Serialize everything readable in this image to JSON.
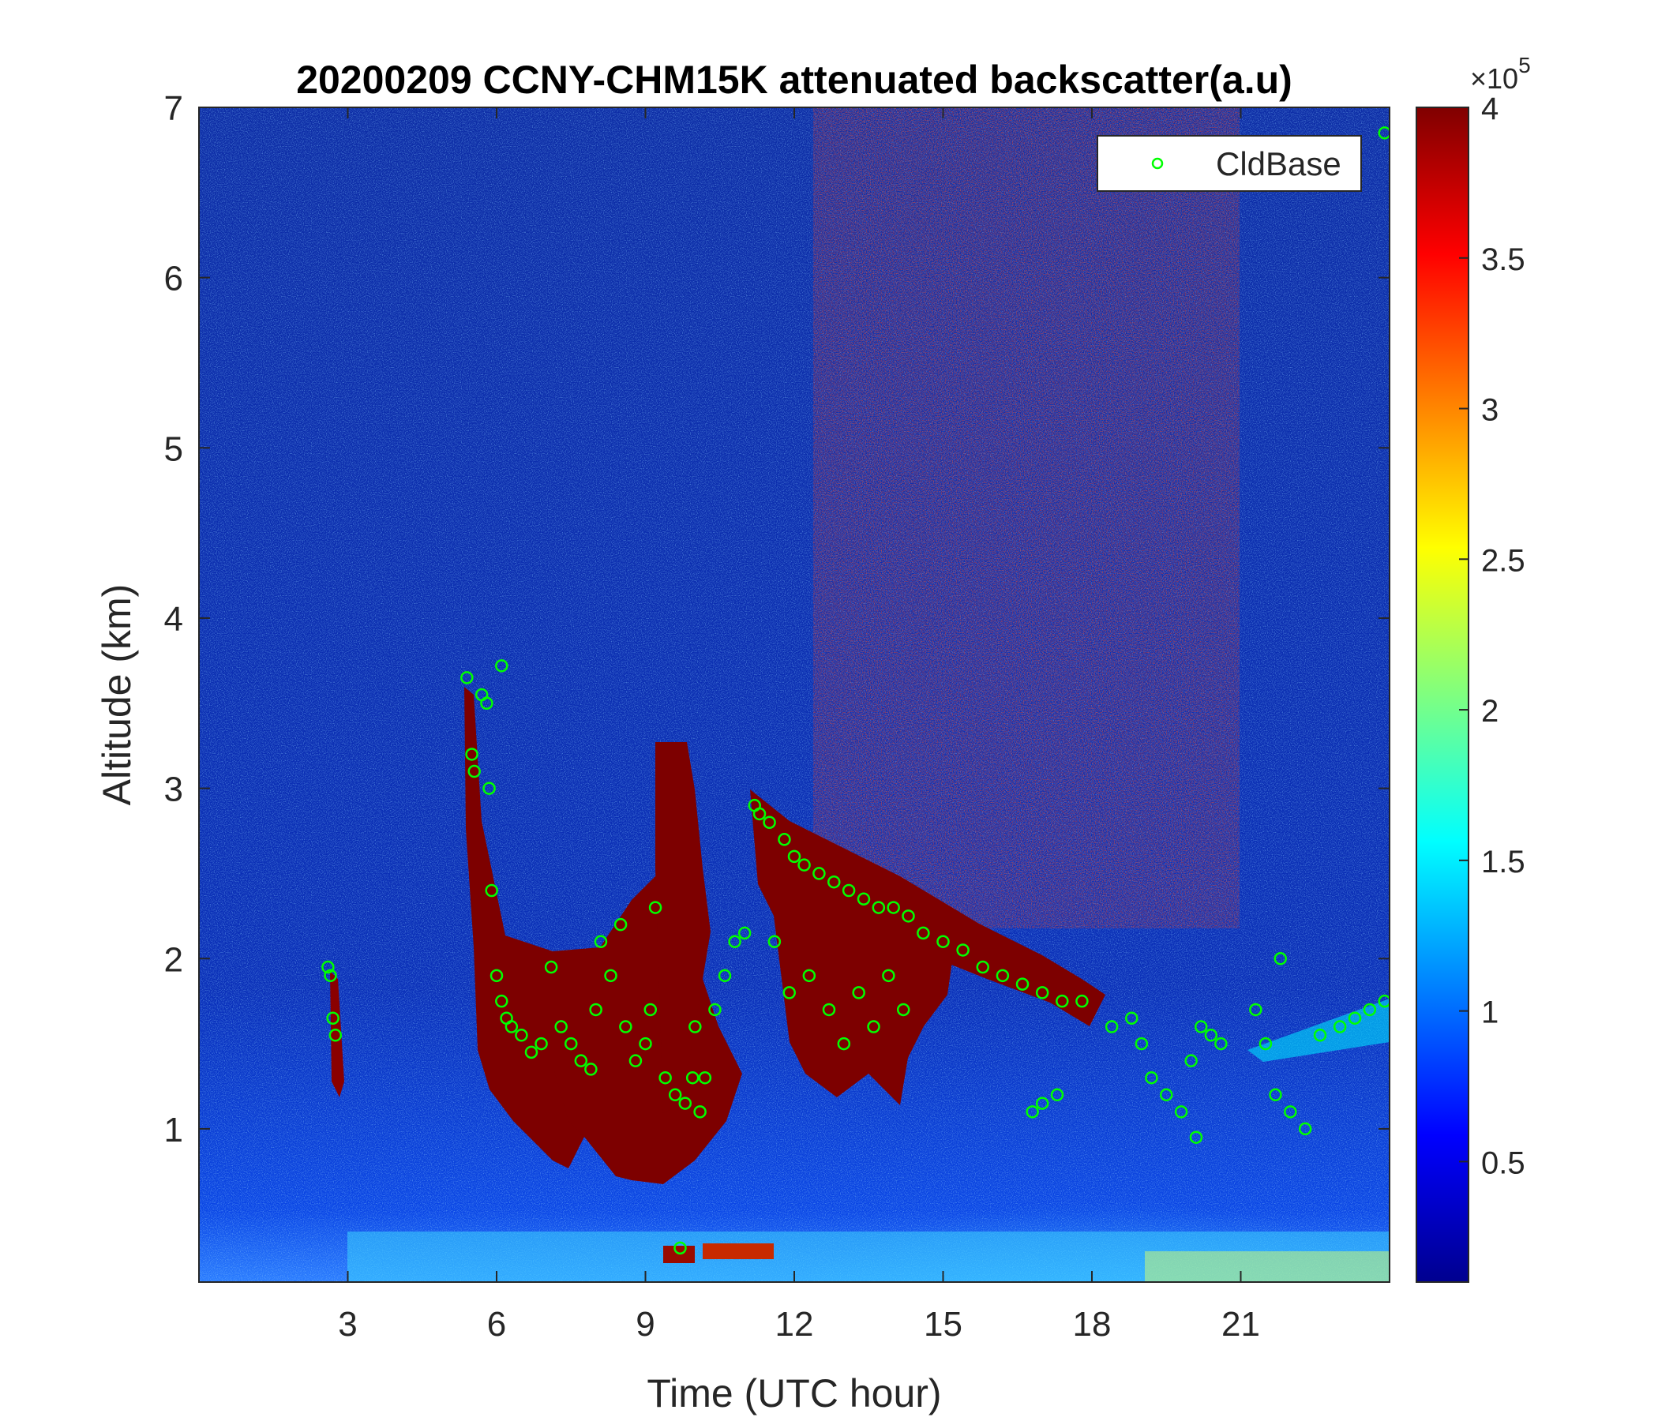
{
  "chart_data": {
    "type": "heatmap",
    "title": "20200209 CCNY-CHM15K attenuated backscatter(a.u)",
    "xlabel": "Time (UTC hour)",
    "ylabel": "Altitude (km)",
    "xlim": [
      0,
      24
    ],
    "ylim": [
      0.1,
      7
    ],
    "xticks": [
      3,
      6,
      9,
      12,
      15,
      18,
      21
    ],
    "yticks": [
      1,
      2,
      3,
      4,
      5,
      6,
      7
    ],
    "colorbar": {
      "colormap": "jet",
      "range": [
        0.1,
        4
      ],
      "ticks": [
        0.5,
        1,
        1.5,
        2,
        2.5,
        3,
        3.5,
        4
      ],
      "tick_labels": [
        "0.5",
        "1",
        "1.5",
        "2",
        "2.5",
        "3",
        "3.5",
        "4"
      ],
      "multiplier_prefix": "×10",
      "multiplier_exponent": "5"
    },
    "legend": {
      "position": "top-right",
      "entries": [
        "CldBase"
      ]
    },
    "series": [
      {
        "name": "CldBase",
        "marker": "circle-open",
        "color": "#00ff00",
        "points": [
          [
            2.6,
            1.95
          ],
          [
            2.65,
            1.9
          ],
          [
            2.7,
            1.65
          ],
          [
            2.75,
            1.55
          ],
          [
            5.4,
            3.65
          ],
          [
            5.5,
            3.2
          ],
          [
            5.55,
            3.1
          ],
          [
            5.7,
            3.55
          ],
          [
            5.8,
            3.5
          ],
          [
            5.85,
            3.0
          ],
          [
            5.9,
            2.4
          ],
          [
            6.0,
            1.9
          ],
          [
            6.1,
            1.75
          ],
          [
            6.2,
            1.65
          ],
          [
            6.3,
            1.6
          ],
          [
            6.5,
            1.55
          ],
          [
            6.7,
            1.45
          ],
          [
            6.9,
            1.5
          ],
          [
            6.1,
            3.72
          ],
          [
            7.1,
            1.95
          ],
          [
            7.3,
            1.6
          ],
          [
            7.5,
            1.5
          ],
          [
            7.7,
            1.4
          ],
          [
            7.9,
            1.35
          ],
          [
            8.0,
            1.7
          ],
          [
            8.1,
            2.1
          ],
          [
            8.3,
            1.9
          ],
          [
            8.5,
            2.2
          ],
          [
            8.6,
            1.6
          ],
          [
            8.8,
            1.4
          ],
          [
            9.0,
            1.5
          ],
          [
            9.1,
            1.7
          ],
          [
            9.2,
            2.3
          ],
          [
            9.4,
            1.3
          ],
          [
            9.6,
            1.2
          ],
          [
            9.8,
            1.15
          ],
          [
            9.95,
            1.3
          ],
          [
            10.0,
            1.6
          ],
          [
            10.1,
            1.1
          ],
          [
            10.2,
            1.3
          ],
          [
            10.4,
            1.7
          ],
          [
            10.6,
            1.9
          ],
          [
            10.8,
            2.1
          ],
          [
            11.0,
            2.15
          ],
          [
            11.2,
            2.9
          ],
          [
            11.3,
            2.85
          ],
          [
            11.5,
            2.8
          ],
          [
            11.8,
            2.7
          ],
          [
            12.0,
            2.6
          ],
          [
            12.2,
            2.55
          ],
          [
            12.5,
            2.5
          ],
          [
            12.8,
            2.45
          ],
          [
            13.1,
            2.4
          ],
          [
            13.4,
            2.35
          ],
          [
            13.7,
            2.3
          ],
          [
            14.0,
            2.3
          ],
          [
            14.3,
            2.25
          ],
          [
            14.6,
            2.15
          ],
          [
            15.0,
            2.1
          ],
          [
            15.4,
            2.05
          ],
          [
            11.6,
            2.1
          ],
          [
            11.9,
            1.8
          ],
          [
            12.3,
            1.9
          ],
          [
            12.7,
            1.7
          ],
          [
            13.0,
            1.5
          ],
          [
            13.3,
            1.8
          ],
          [
            13.6,
            1.6
          ],
          [
            13.9,
            1.9
          ],
          [
            14.2,
            1.7
          ],
          [
            9.7,
            0.3
          ],
          [
            15.8,
            1.95
          ],
          [
            16.2,
            1.9
          ],
          [
            16.6,
            1.85
          ],
          [
            17.0,
            1.8
          ],
          [
            17.4,
            1.75
          ],
          [
            17.8,
            1.75
          ],
          [
            16.8,
            1.1
          ],
          [
            17.0,
            1.15
          ],
          [
            17.3,
            1.2
          ],
          [
            18.4,
            1.6
          ],
          [
            18.8,
            1.65
          ],
          [
            19.0,
            1.5
          ],
          [
            19.2,
            1.3
          ],
          [
            19.5,
            1.2
          ],
          [
            19.8,
            1.1
          ],
          [
            20.0,
            1.4
          ],
          [
            20.2,
            1.6
          ],
          [
            20.4,
            1.55
          ],
          [
            20.6,
            1.5
          ],
          [
            20.1,
            0.95
          ],
          [
            21.3,
            1.7
          ],
          [
            21.5,
            1.5
          ],
          [
            21.8,
            2.0
          ],
          [
            21.7,
            1.2
          ],
          [
            22.0,
            1.1
          ],
          [
            22.3,
            1.0
          ],
          [
            22.6,
            1.55
          ],
          [
            23.0,
            1.6
          ],
          [
            23.3,
            1.65
          ],
          [
            23.6,
            1.7
          ],
          [
            23.9,
            1.75
          ],
          [
            23.9,
            6.85
          ]
        ]
      }
    ]
  }
}
